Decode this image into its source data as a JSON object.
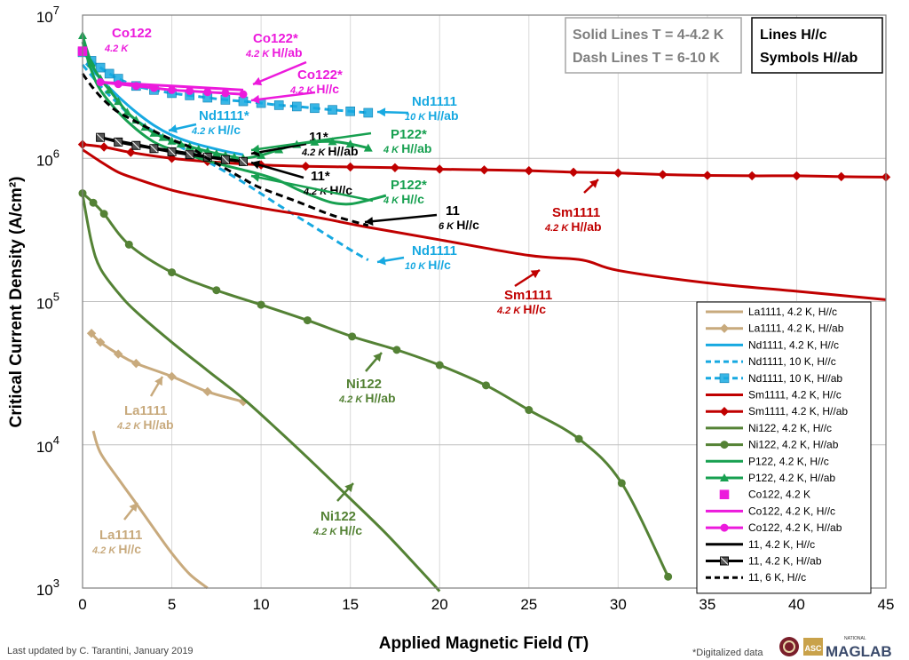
{
  "chart_data": {
    "type": "line",
    "xlabel": "Applied Magnetic Field (T)",
    "ylabel": "Critical Current Density (A/cm²)",
    "xlim": [
      0,
      45
    ],
    "ylim_log10": [
      3,
      7
    ],
    "x_ticks": [
      0,
      5,
      10,
      15,
      20,
      25,
      30,
      35,
      40,
      45
    ],
    "y_ticks": [
      {
        "base": "10",
        "exp": "7"
      },
      {
        "base": "10",
        "exp": "6"
      },
      {
        "base": "10",
        "exp": "5"
      },
      {
        "base": "10",
        "exp": "4"
      },
      {
        "base": "10",
        "exp": "3"
      }
    ],
    "grid": true,
    "colors": {
      "la": "#c8aa7d",
      "nd": "#17a9e1",
      "sm": "#c00000",
      "ni": "#548235",
      "p": "#17a050",
      "co": "#ec1adc",
      "fe": "#000000"
    },
    "series": [
      {
        "name": "La1111, 4.2 K, H//c",
        "color": "#c8aa7d",
        "dash": false,
        "marker": "none",
        "x": [
          0.6,
          1,
          2,
          3,
          4,
          5,
          6,
          7
        ],
        "y": [
          12500,
          8800,
          5800,
          3900,
          2600,
          1750,
          1250,
          1000
        ]
      },
      {
        "name": "La1111, 4.2 K, H//ab",
        "color": "#c8aa7d",
        "dash": false,
        "marker": "diamond",
        "x": [
          0.5,
          1,
          2,
          3,
          5,
          7,
          9
        ],
        "y": [
          60000,
          52000,
          43000,
          37000,
          30000,
          23500,
          20000
        ]
      },
      {
        "name": "Nd1111, 4.2 K, H//c",
        "color": "#17a9e1",
        "dash": false,
        "marker": "none",
        "x": [
          0.2,
          1,
          2,
          3,
          4,
          5,
          6,
          7,
          8,
          9
        ],
        "y": [
          4600000,
          3600000,
          2700000,
          2100000,
          1700000,
          1450000,
          1300000,
          1200000,
          1120000,
          1060000
        ]
      },
      {
        "name": "Nd1111, 10 K, H//c",
        "color": "#17a9e1",
        "dash": true,
        "marker": "none",
        "x": [
          0,
          1,
          2,
          3,
          5,
          7,
          9,
          11,
          13,
          15,
          16
        ],
        "y": [
          4500000,
          3200000,
          2400000,
          1850000,
          1300000,
          950000,
          680000,
          470000,
          330000,
          230000,
          195000
        ]
      },
      {
        "name": "Nd1111, 10 K, H//ab",
        "color": "#17a9e1",
        "dash": true,
        "marker": "square",
        "x": [
          0,
          0.5,
          1,
          1.5,
          2,
          3,
          4,
          5,
          6,
          7,
          8,
          9,
          10,
          11,
          12,
          13,
          14,
          15,
          16
        ],
        "y": [
          5500000,
          4800000,
          4300000,
          3900000,
          3600000,
          3200000,
          3000000,
          2850000,
          2750000,
          2650000,
          2560000,
          2500000,
          2430000,
          2350000,
          2300000,
          2240000,
          2180000,
          2130000,
          2080000
        ]
      },
      {
        "name": "Sm1111, 4.2 K, H//c",
        "color": "#c00000",
        "dash": false,
        "marker": "none",
        "x": [
          0,
          1,
          2,
          3,
          5,
          7,
          10,
          13,
          16,
          20,
          25,
          28,
          30,
          35,
          40,
          45
        ],
        "y": [
          1150000,
          950000,
          800000,
          720000,
          600000,
          530000,
          450000,
          390000,
          330000,
          270000,
          210000,
          195000,
          165000,
          135000,
          118000,
          103000
        ]
      },
      {
        "name": "Sm1111, 4.2 K, H//ab",
        "color": "#c00000",
        "dash": false,
        "marker": "diamond",
        "x": [
          0,
          1.2,
          2.7,
          5,
          7,
          10,
          12.5,
          15,
          17.5,
          20,
          22.5,
          25,
          27.5,
          30,
          32.5,
          35,
          37.5,
          40,
          42.5,
          45
        ],
        "y": [
          1250000,
          1200000,
          1100000,
          1000000,
          950000,
          900000,
          880000,
          870000,
          860000,
          840000,
          830000,
          820000,
          800000,
          790000,
          770000,
          760000,
          755000,
          755000,
          745000,
          740000
        ]
      },
      {
        "name": "Ni122, 4.2 K, H//c",
        "color": "#548235",
        "dash": false,
        "marker": "none",
        "x": [
          0,
          0.5,
          1,
          2,
          3,
          5,
          7,
          9,
          11,
          13,
          15,
          17,
          19,
          20
        ],
        "y": [
          560000,
          260000,
          170000,
          115000,
          85000,
          52000,
          33000,
          21000,
          12500,
          7300,
          4200,
          2400,
          1300,
          950
        ]
      },
      {
        "name": "Ni122, 4.2 K, H//ab",
        "color": "#548235",
        "dash": false,
        "marker": "circle",
        "x": [
          0,
          0.6,
          1.2,
          2.6,
          5,
          7.5,
          10,
          12.6,
          15.1,
          17.6,
          20,
          22.6,
          25,
          27.8,
          30.2,
          32.8
        ],
        "y": [
          570000,
          490000,
          410000,
          250000,
          160000,
          120000,
          95000,
          74000,
          57000,
          46000,
          36000,
          26000,
          17500,
          11000,
          5400,
          1200
        ]
      },
      {
        "name": "P122, 4.2 K, H//c",
        "color": "#17a050",
        "dash": false,
        "marker": "none",
        "x": [
          0,
          0.5,
          1,
          2,
          3,
          4,
          5,
          6,
          7,
          8,
          9,
          10,
          11,
          12,
          13,
          14,
          15,
          16,
          17
        ],
        "y": [
          6500000,
          4100000,
          3000000,
          2100000,
          1600000,
          1300000,
          1150000,
          1050000,
          960000,
          890000,
          830000,
          770000,
          700000,
          610000,
          540000,
          490000,
          480000,
          510000,
          550000
        ]
      },
      {
        "name": "P122, 4.2 K, H//ab",
        "color": "#17a050",
        "dash": false,
        "marker": "triangle",
        "x": [
          0,
          0.5,
          1,
          1.5,
          2,
          2.5,
          3,
          3.5,
          4,
          4.5,
          5,
          5.5,
          6,
          6.5,
          7,
          7.5,
          8,
          8.5,
          9,
          10,
          11,
          12,
          13,
          14,
          15,
          16
        ],
        "y": [
          7200000,
          4600000,
          3600000,
          3000000,
          2500000,
          2100000,
          1850000,
          1650000,
          1500000,
          1400000,
          1320000,
          1260000,
          1210000,
          1160000,
          1120000,
          1080000,
          1050000,
          1020000,
          1000000,
          1050000,
          1150000,
          1250000,
          1300000,
          1310000,
          1260000,
          1180000
        ]
      },
      {
        "name": "Co122, 4.2 K",
        "color": "#ec1adc",
        "dash": false,
        "marker": "square-only",
        "x": [
          0
        ],
        "y": [
          5600000
        ]
      },
      {
        "name": "Co122, 4.2 K, H//c",
        "color": "#ec1adc",
        "dash": false,
        "marker": "none",
        "x": [
          1,
          2,
          3,
          4,
          5,
          6,
          7,
          8,
          9
        ],
        "y": [
          3400000,
          3350000,
          3300000,
          3250000,
          3200000,
          3150000,
          3100000,
          3050000,
          3000000
        ]
      },
      {
        "name": "Co122, 4.2 K, H//ab",
        "color": "#ec1adc",
        "dash": false,
        "marker": "circle",
        "x": [
          1,
          2,
          3,
          4,
          5,
          6,
          7,
          8,
          9
        ],
        "y": [
          3400000,
          3300000,
          3200000,
          3100000,
          3000000,
          2950000,
          2900000,
          2850000,
          2800000
        ]
      },
      {
        "name": "11, 4.2 K, H//c",
        "color": "#000000",
        "dash": false,
        "marker": "none",
        "x": [
          1,
          2,
          3,
          4,
          5,
          6,
          7,
          8,
          9
        ],
        "y": [
          1400000,
          1320000,
          1250000,
          1180000,
          1130000,
          1080000,
          1030000,
          990000,
          950000
        ]
      },
      {
        "name": "11, 4.2 K, H//ab",
        "color": "#000000",
        "dash": false,
        "marker": "square-x",
        "x": [
          1,
          2,
          3,
          4,
          5,
          6,
          7,
          8,
          9
        ],
        "y": [
          1400000,
          1300000,
          1230000,
          1170000,
          1110000,
          1060000,
          1020000,
          980000,
          950000
        ]
      },
      {
        "name": "11, 6 K, H//c",
        "color": "#000000",
        "dash": true,
        "marker": "none",
        "x": [
          0,
          0.5,
          1,
          1.5,
          2,
          3,
          4,
          5,
          6,
          7,
          8,
          9,
          10,
          12,
          14,
          16
        ],
        "y": [
          3900000,
          3200000,
          2700000,
          2350000,
          2100000,
          1800000,
          1550000,
          1350000,
          1200000,
          1000000,
          850000,
          720000,
          620000,
          500000,
          400000,
          340000
        ]
      }
    ],
    "annotations": [
      {
        "label": "Co122",
        "sub": "4.2 K",
        "sub_rest": "",
        "color": "#ec1adc"
      },
      {
        "label": "Co122*",
        "sub": "4.2 K",
        "sub_rest": "H//ab",
        "color": "#ec1adc"
      },
      {
        "label": "Co122*",
        "sub": "4.2 K",
        "sub_rest": "H//c",
        "color": "#ec1adc"
      },
      {
        "label": "Nd1111",
        "sub": "10 K",
        "sub_rest": "H//ab",
        "color": "#17a9e1"
      },
      {
        "label": "Nd1111*",
        "sub": "4.2 K",
        "sub_rest": "H//c",
        "color": "#17a9e1"
      },
      {
        "label": "11*",
        "sub": "4.2 K",
        "sub_rest": "H//ab",
        "color": "#000000"
      },
      {
        "label": "P122*",
        "sub": "4 K",
        "sub_rest": "H//ab",
        "color": "#17a050"
      },
      {
        "label": "11*",
        "sub": "4.2 K",
        "sub_rest": "H//c",
        "color": "#000000"
      },
      {
        "label": "P122*",
        "sub": "4 K",
        "sub_rest": "H//c",
        "color": "#17a050"
      },
      {
        "label": "11",
        "sub": "6 K",
        "sub_rest": "H//c",
        "color": "#000000"
      },
      {
        "label": "Sm1111",
        "sub": "4.2 K",
        "sub_rest": "H//ab",
        "color": "#c00000"
      },
      {
        "label": "Nd1111",
        "sub": "10 K",
        "sub_rest": "H//c",
        "color": "#17a9e1"
      },
      {
        "label": "Sm1111",
        "sub": "4.2 K",
        "sub_rest": "H//c",
        "color": "#c00000"
      },
      {
        "label": "Ni122",
        "sub": "4.2 K",
        "sub_rest": "H//ab",
        "color": "#548235"
      },
      {
        "label": "La1111",
        "sub": "4.2 K",
        "sub_rest": "H//ab",
        "color": "#c8aa7d"
      },
      {
        "label": "Ni122",
        "sub": "4.2 K",
        "sub_rest": "H//c",
        "color": "#548235"
      },
      {
        "label": "La1111",
        "sub": "4.2 K",
        "sub_rest": "H//c",
        "color": "#c8aa7d"
      }
    ],
    "info_box": {
      "line1": "Solid Lines T = 4-4.2 K",
      "line2": "Dash Lines T = 6-10 K"
    },
    "orient_box": {
      "line1": "Lines H//c",
      "line2": "Symbols H//ab"
    },
    "legend_position": "bottom-right"
  },
  "footer": {
    "updated": "Last updated by C. Tarantini, January 2019",
    "note": "*Digitalized data",
    "logo_asc": "ASC",
    "logo_national": "NATIONAL",
    "logo_maglab": "MAGLAB"
  }
}
